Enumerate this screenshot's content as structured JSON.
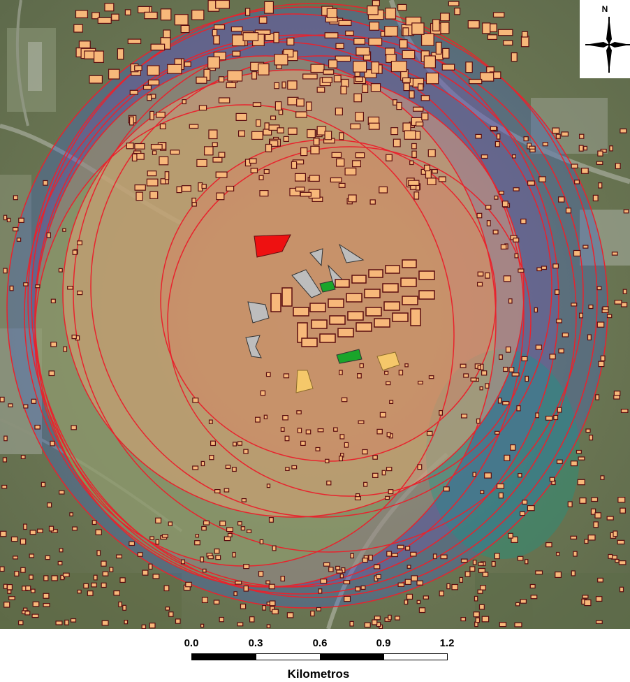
{
  "map": {
    "north_label": "N",
    "scale": {
      "ticks": [
        "0.0",
        "0.3",
        "0.6",
        "0.9",
        "1.2"
      ],
      "unit": "Kilometros"
    },
    "colors": {
      "buffer_stroke": "#e8232d",
      "buffer_fill": "#e27b5f",
      "building_fill": "#f7b87a",
      "building_stroke": "#5b0d10",
      "highlight_red": "#ee1111",
      "highlight_green": "#1aa52a",
      "highlight_yellow": "#f5c86a",
      "highlight_grey": "#bdbdbd"
    }
  }
}
